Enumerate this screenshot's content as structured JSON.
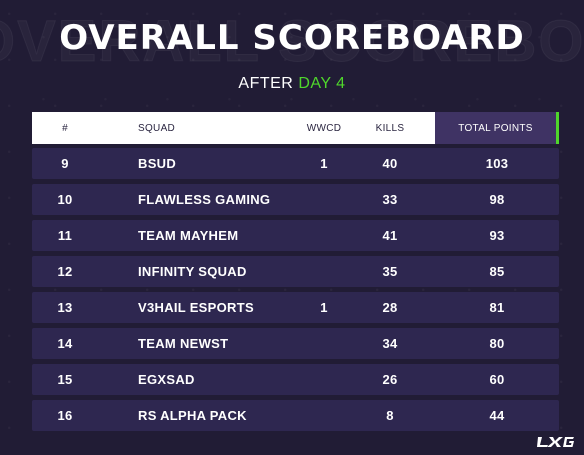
{
  "title": "OVERALL SCOREBOARD",
  "subtitle": {
    "prefix": "AFTER",
    "accent": "DAY 4"
  },
  "columns": {
    "rank": "#",
    "squad": "SQUAD",
    "wwcd": "WWCD",
    "kills": "KILLS",
    "total_points": "TOTAL POINTS"
  },
  "rows": [
    {
      "rank": "9",
      "squad": "BSUD",
      "wwcd": "1",
      "kills": "40",
      "total_points": "103"
    },
    {
      "rank": "10",
      "squad": "FLAWLESS GAMING",
      "wwcd": "",
      "kills": "33",
      "total_points": "98"
    },
    {
      "rank": "11",
      "squad": "TEAM MAYHEM",
      "wwcd": "",
      "kills": "41",
      "total_points": "93"
    },
    {
      "rank": "12",
      "squad": "INFINITY SQUAD",
      "wwcd": "",
      "kills": "35",
      "total_points": "85"
    },
    {
      "rank": "13",
      "squad": "V3HAIL ESPORTS",
      "wwcd": "1",
      "kills": "28",
      "total_points": "81"
    },
    {
      "rank": "14",
      "squad": "TEAM NEWST",
      "wwcd": "",
      "kills": "34",
      "total_points": "80"
    },
    {
      "rank": "15",
      "squad": "EGXSAD",
      "wwcd": "",
      "kills": "26",
      "total_points": "60"
    },
    {
      "rank": "16",
      "squad": "RS ALPHA PACK",
      "wwcd": "",
      "kills": "8",
      "total_points": "44"
    }
  ],
  "colors": {
    "background": "#211c35",
    "row": "#2e2750",
    "accent": "#4fd62c",
    "header_highlight": "#3f3364"
  },
  "icons": {
    "logo": "lxg-logo"
  }
}
